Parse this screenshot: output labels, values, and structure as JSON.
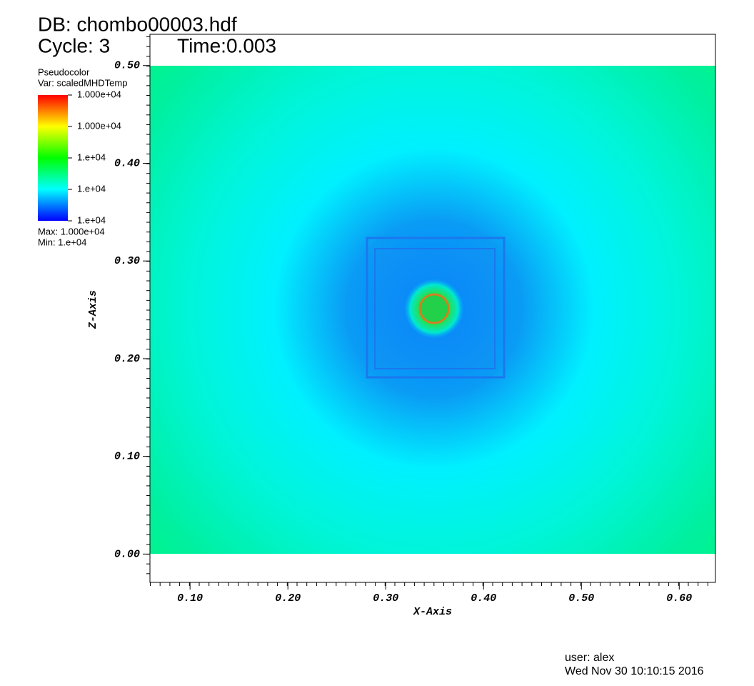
{
  "chart_data": {
    "type": "pseudocolor",
    "database": "DB: chombo00003.hdf",
    "cycle": "Cycle: 3",
    "time": "Time:0.003",
    "plot_name": "Pseudocolor",
    "variable": "Var: scaledMHDTemp",
    "colorbar_labels": [
      "1.000e+04",
      "1.000e+04",
      "1.e+04",
      "1.e+04",
      "1.e+04"
    ],
    "max_label": "Max:  1.000e+04",
    "min_label": "Min:  1.e+04",
    "x_label": "X-Axis",
    "y_label": "Z-Axis",
    "xlim": [
      0.059,
      0.637
    ],
    "ylim": [
      -0.029,
      0.532
    ],
    "xticks": [
      {
        "value": 0.1,
        "label": "0.10"
      },
      {
        "value": 0.2,
        "label": "0.20"
      },
      {
        "value": 0.3,
        "label": "0.30"
      },
      {
        "value": 0.4,
        "label": "0.40"
      },
      {
        "value": 0.5,
        "label": "0.50"
      },
      {
        "value": 0.6,
        "label": "0.60"
      }
    ],
    "yticks": [
      {
        "value": 0,
        "label": "0.00"
      },
      {
        "value": 0.1,
        "label": "0.10"
      },
      {
        "value": 0.2,
        "label": "0.20"
      },
      {
        "value": 0.3,
        "label": "0.30"
      },
      {
        "value": 0.4,
        "label": "0.40"
      },
      {
        "value": 0.5,
        "label": "0.50"
      }
    ],
    "user": "user: alex",
    "date": "Wed Nov 30 10:10:15 2016"
  }
}
